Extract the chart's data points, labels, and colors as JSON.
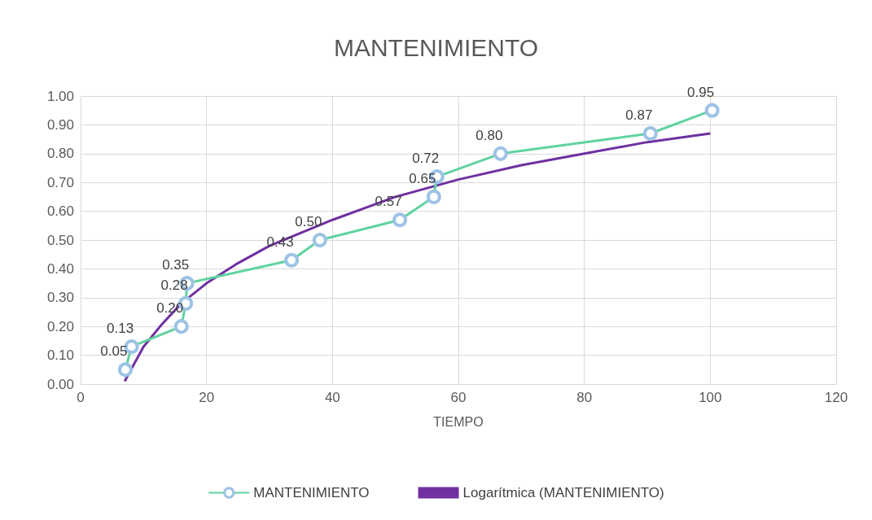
{
  "chart_data": {
    "type": "line",
    "title": "MANTENIMIENTO",
    "xlabel": "TIEMPO",
    "x": [
      7.1,
      8.1,
      16,
      16.7,
      16.9,
      33.5,
      38,
      50.7,
      56.1,
      56.6,
      66.7,
      90.5,
      100.3
    ],
    "series": [
      {
        "name": "MANTENIMIENTO",
        "color": "#5fd3a0",
        "marker": "circle",
        "values": [
          0.05,
          0.13,
          0.2,
          0.28,
          0.35,
          0.43,
          0.5,
          0.57,
          0.65,
          0.72,
          0.8,
          0.87,
          0.95
        ],
        "value_labels": [
          "0.05",
          "0.13",
          "0.20",
          "0.28",
          "0.35",
          "0.43",
          "0.50",
          "0.57",
          "0.65",
          "0.72",
          "0.80",
          "0.87",
          "0.95"
        ]
      },
      {
        "name": "Logarítmica (MANTENIMIENTO)",
        "color": "#7030a0",
        "marker": "none",
        "x": [
          7,
          8,
          10,
          13,
          16,
          20,
          25,
          30,
          40,
          50,
          60,
          70,
          80,
          90,
          100
        ],
        "values": [
          0.01,
          0.05,
          0.13,
          0.21,
          0.28,
          0.35,
          0.42,
          0.48,
          0.57,
          0.65,
          0.71,
          0.76,
          0.8,
          0.84,
          0.87
        ]
      }
    ],
    "xlim": [
      0,
      120
    ],
    "xticks": [
      0,
      20,
      40,
      60,
      80,
      100,
      120
    ],
    "ylim": [
      0,
      1
    ],
    "yticks": [
      {
        "value": 0,
        "label": "0.00"
      },
      {
        "value": 0.1,
        "label": "0.10"
      },
      {
        "value": 0.2,
        "label": "0.20"
      },
      {
        "value": 0.3,
        "label": "0.30"
      },
      {
        "value": 0.4,
        "label": "0.40"
      },
      {
        "value": 0.5,
        "label": "0.50"
      },
      {
        "value": 0.6,
        "label": "0.60"
      },
      {
        "value": 0.7,
        "label": "0.70"
      },
      {
        "value": 0.8,
        "label": "0.80"
      },
      {
        "value": 0.9,
        "label": "0.90"
      },
      {
        "value": 1,
        "label": "1.00"
      }
    ],
    "grid": true,
    "legend": "bottom"
  }
}
